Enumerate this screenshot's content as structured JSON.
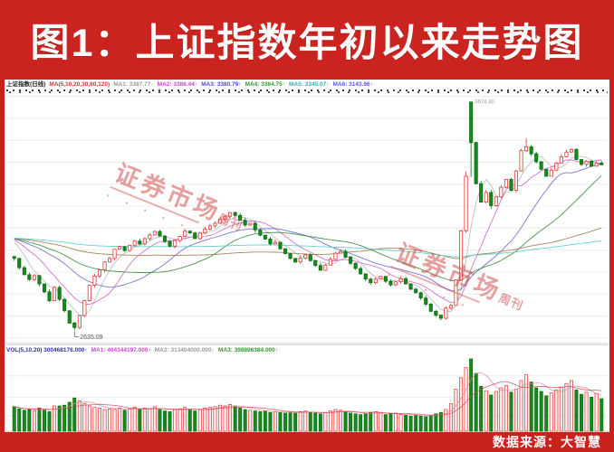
{
  "banner": {
    "title": "图1：上证指数年初以来走势图"
  },
  "footer": {
    "source_label": "数据来源：大智慧"
  },
  "watermark": {
    "text_main": "证券市场",
    "text_small": "周刊",
    "dots": "· · · · ·"
  },
  "chart_header": {
    "parts": [
      {
        "t": "上证指数(日线)",
        "c": "#222222"
      },
      {
        "t": "MA(5,10,20,30,60,120)",
        "c": "#cc3333"
      },
      {
        "t": "MA1: 3387.77↑",
        "c": "#9a9a9a"
      },
      {
        "t": "MA2: 3386.44↑",
        "c": "#cc44cc"
      },
      {
        "t": "MA3: 3380.79↑",
        "c": "#4b4bd0"
      },
      {
        "t": "MA4: 3364.75↑",
        "c": "#2f9a2f"
      },
      {
        "t": "MA5: 3345.07↑",
        "c": "#2fb0b0"
      },
      {
        "t": "MA6: 3143.96↑",
        "c": "#5555dd"
      }
    ]
  },
  "vol_header": {
    "parts": [
      {
        "t": "VOL(5,10,20) 300468176.000↑",
        "c": "#333399"
      },
      {
        "t": "MA1: 404344197.000↑",
        "c": "#cc44cc"
      },
      {
        "t": "MA2: 313404000.000↑",
        "c": "#9a9a9a"
      },
      {
        "t": "MA3: 398896384.000↑",
        "c": "#2f9a2f"
      }
    ]
  },
  "chart_data": {
    "type": "candlestick",
    "title": "上证指数年初以来走势图",
    "instrument": "上证指数",
    "panes": [
      "price",
      "volume"
    ],
    "price_min": 2575,
    "price_max": 3710,
    "grid_step": 100,
    "closes": [
      2962,
      2920,
      2888,
      2866,
      2884,
      2846,
      2810,
      2770,
      2830,
      2776,
      2724,
      2668,
      2648,
      2702,
      2770,
      2840,
      2882,
      2910,
      2946,
      2962,
      3004,
      3016,
      2998,
      3022,
      3041,
      3028,
      3052,
      3069,
      3085,
      3064,
      3039,
      3018,
      3044,
      3062,
      3086,
      3078,
      3052,
      3078,
      3096,
      3110,
      3122,
      3140,
      3154,
      3171,
      3158,
      3136,
      3114,
      3122,
      3092,
      3068,
      3050,
      3028,
      3036,
      3006,
      2984,
      2962,
      2946,
      2964,
      2978,
      2952,
      2930,
      2908,
      2932,
      2958,
      2986,
      2994,
      2968,
      2940,
      2916,
      2892,
      2868,
      2852,
      2868,
      2880,
      2858,
      2842,
      2856,
      2870,
      2846,
      2822,
      2806,
      2782,
      2754,
      2722,
      2704,
      2690,
      2736,
      2748,
      2864,
      3088,
      3336,
      3489,
      3302,
      3218,
      3262,
      3202,
      3242,
      3286,
      3322,
      3272,
      3360,
      3452,
      3470,
      3438,
      3402,
      3368,
      3336,
      3364,
      3396,
      3424,
      3446,
      3458,
      3412,
      3390,
      3404,
      3382,
      3396,
      3388
    ],
    "volumes": [
      34,
      31,
      29,
      30,
      28,
      32,
      30,
      27,
      35,
      35,
      36,
      40,
      46,
      42,
      38,
      35,
      33,
      32,
      30,
      31,
      30,
      32,
      29,
      31,
      33,
      30,
      32,
      31,
      34,
      30,
      28,
      27,
      30,
      31,
      33,
      30,
      28,
      30,
      32,
      33,
      34,
      36,
      35,
      37,
      34,
      32,
      30,
      29,
      28,
      27,
      28,
      26,
      27,
      26,
      25,
      26,
      25,
      27,
      28,
      26,
      25,
      24,
      26,
      28,
      30,
      29,
      27,
      25,
      24,
      23,
      24,
      26,
      27,
      25,
      23,
      24,
      25,
      23,
      22,
      21,
      22,
      21,
      20,
      22,
      24,
      26,
      30,
      38,
      58,
      74,
      88,
      100,
      80,
      62,
      56,
      50,
      55,
      60,
      63,
      54,
      58,
      70,
      78,
      68,
      60,
      55,
      49,
      53,
      57,
      61,
      66,
      70,
      57,
      51,
      54,
      47,
      52,
      45
    ],
    "overrides": {
      "12": {
        "low": 2635.09
      },
      "90": {
        "high": 3358
      },
      "91": {
        "open": 3674.0,
        "high": 3674.4
      },
      "102": {
        "high": 3509
      }
    },
    "landmarks": {
      "low_label": {
        "index": 12,
        "text": "2635.09"
      },
      "high_label": {
        "index": 91,
        "text": "3674.40"
      }
    },
    "ma_windows": [
      5,
      10,
      20,
      30,
      60,
      120
    ],
    "ma_colors": [
      "#b8b8b8",
      "#cc66cc",
      "#6a66cc",
      "#3a8a3a",
      "#9a7a4a",
      "#55cccc"
    ],
    "pre_pad_value": 3055,
    "colors": {
      "up_stroke": "#e23434",
      "up_fill": "#ffffff",
      "down_fill": "#168a1c",
      "down_stroke": "#0c6e12",
      "grid": "#ececec",
      "vol_ma": [
        "#ee7f93",
        "#cc4455"
      ]
    }
  }
}
